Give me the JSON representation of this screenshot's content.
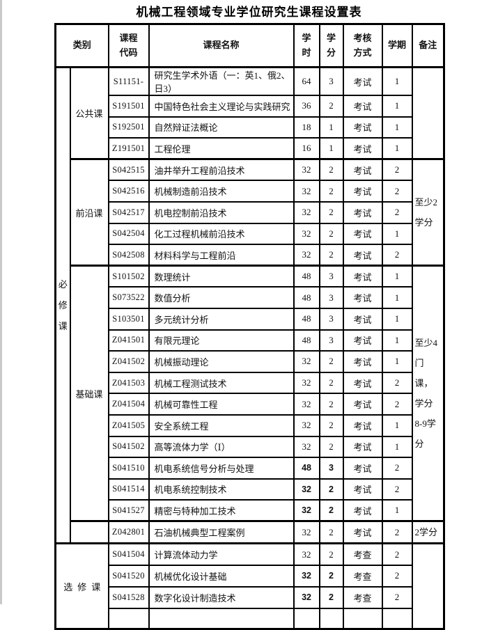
{
  "title": "机械工程领域专业学位研究生课程设置表",
  "table": {
    "headers": {
      "category": "类别",
      "code": "课程\n代码",
      "name": "课程名称",
      "hours": "学\n时",
      "credits": "学\n分",
      "assessment": "考核\n方式",
      "semester": "学期",
      "note": "备注"
    },
    "required_label": "必修课",
    "sections": [
      {
        "group": "required",
        "label": "公共课",
        "note": "",
        "rows": [
          {
            "code": "S11151-",
            "name": "研究生学术外语（一：英1、俄2、日3）",
            "hours": "64",
            "credits": "3",
            "assessment": "考试",
            "semester": "1",
            "bold": false
          },
          {
            "code": "S191501",
            "name": "中国特色社会主义理论与实践研究",
            "hours": "36",
            "credits": "2",
            "assessment": "考试",
            "semester": "1",
            "bold": false
          },
          {
            "code": "S192501",
            "name": "自然辩证法概论",
            "hours": "18",
            "credits": "1",
            "assessment": "考试",
            "semester": "1",
            "bold": false
          },
          {
            "code": "Z191501",
            "name": "工程伦理",
            "hours": "16",
            "credits": "1",
            "assessment": "考试",
            "semester": "1",
            "bold": false
          }
        ]
      },
      {
        "group": "required",
        "label": "前沿课",
        "note": "至少2\n学分",
        "rows": [
          {
            "code": "S042515",
            "name": "油井举升工程前沿技术",
            "hours": "32",
            "credits": "2",
            "assessment": "考试",
            "semester": "2",
            "bold": false
          },
          {
            "code": "S042516",
            "name": "机械制造前沿技术",
            "hours": "32",
            "credits": "2",
            "assessment": "考试",
            "semester": "2",
            "bold": false
          },
          {
            "code": "S042517",
            "name": "机电控制前沿技术",
            "hours": "32",
            "credits": "2",
            "assessment": "考试",
            "semester": "2",
            "bold": false
          },
          {
            "code": "S042504",
            "name": "化工过程机械前沿技术",
            "hours": "32",
            "credits": "2",
            "assessment": "考试",
            "semester": "1",
            "bold": false
          },
          {
            "code": "S042508",
            "name": "材料科学与工程前沿",
            "hours": "32",
            "credits": "2",
            "assessment": "考试",
            "semester": "2",
            "bold": false
          }
        ]
      },
      {
        "group": "required",
        "label": "基础课",
        "note": "至少4\n门课，\n学分\n8-9学\n分",
        "rows": [
          {
            "code": "S101502",
            "name": "数理统计",
            "hours": "48",
            "credits": "3",
            "assessment": "考试",
            "semester": "1",
            "bold": false
          },
          {
            "code": "S073522",
            "name": "数值分析",
            "hours": "48",
            "credits": "3",
            "assessment": "考试",
            "semester": "1",
            "bold": false
          },
          {
            "code": "S103501",
            "name": "多元统计分析",
            "hours": "48",
            "credits": "3",
            "assessment": "考试",
            "semester": "1",
            "bold": false
          },
          {
            "code": "Z041501",
            "name": "有限元理论",
            "hours": "48",
            "credits": "3",
            "assessment": "考试",
            "semester": "1",
            "bold": false
          },
          {
            "code": "Z041502",
            "name": "机械振动理论",
            "hours": "32",
            "credits": "2",
            "assessment": "考试",
            "semester": "1",
            "bold": false
          },
          {
            "code": "Z041503",
            "name": "机械工程测试技术",
            "hours": "32",
            "credits": "2",
            "assessment": "考试",
            "semester": "2",
            "bold": false
          },
          {
            "code": "Z041504",
            "name": "机械可靠性工程",
            "hours": "32",
            "credits": "2",
            "assessment": "考试",
            "semester": "2",
            "bold": false
          },
          {
            "code": "Z041505",
            "name": "安全系统工程",
            "hours": "32",
            "credits": "2",
            "assessment": "考试",
            "semester": "1",
            "bold": false
          },
          {
            "code": "S041502",
            "name": "高等流体力学（Ⅰ）",
            "hours": "32",
            "credits": "2",
            "assessment": "考试",
            "semester": "1",
            "bold": false
          },
          {
            "code": "S041510",
            "name": "机电系统信号分析与处理",
            "hours": "48",
            "credits": "3",
            "assessment": "考试",
            "semester": "2",
            "bold": true
          },
          {
            "code": "S041514",
            "name": "机电系统控制技术",
            "hours": "32",
            "credits": "2",
            "assessment": "考试",
            "semester": "2",
            "bold": true
          },
          {
            "code": "S041527",
            "name": "精密与特种加工技术",
            "hours": "32",
            "credits": "2",
            "assessment": "考试",
            "semester": "1",
            "bold": true
          }
        ]
      },
      {
        "group": "required",
        "label": "",
        "note": "2学分",
        "rows": [
          {
            "code": "Z042801",
            "name": "石油机械典型工程案例",
            "hours": "32",
            "credits": "2",
            "assessment": "考试",
            "semester": "2",
            "bold": false
          }
        ]
      },
      {
        "group": "elective",
        "label": "选修课",
        "note": "",
        "rows": [
          {
            "code": "S041504",
            "name": "计算流体动力学",
            "hours": "32",
            "credits": "2",
            "assessment": "考查",
            "semester": "2",
            "bold": false
          },
          {
            "code": "S041520",
            "name": "机械优化设计基础",
            "hours": "32",
            "credits": "2",
            "assessment": "考查",
            "semester": "2",
            "bold": true
          },
          {
            "code": "S041528",
            "name": "数字化设计制造技术",
            "hours": "32",
            "credits": "2",
            "assessment": "考查",
            "semester": "2",
            "bold": true
          }
        ]
      }
    ]
  }
}
